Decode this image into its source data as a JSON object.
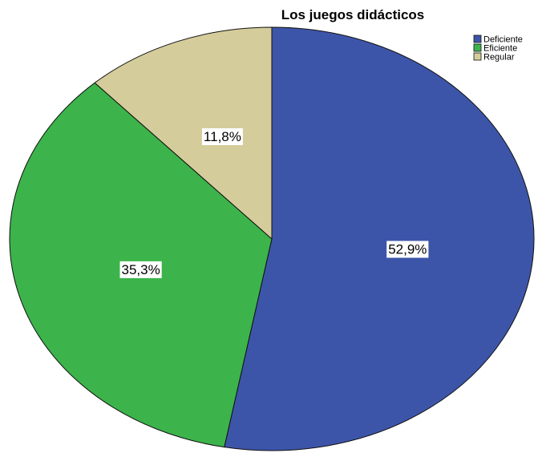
{
  "chart_data": {
    "type": "pie",
    "title": "Los juegos didácticos",
    "categories": [
      "Deficiente",
      "Eficiente",
      "Regular"
    ],
    "values": [
      52.9,
      35.3,
      11.8
    ],
    "labels": [
      "52,9%",
      "35,3%",
      "11,8%"
    ],
    "colors": [
      "#3d55a9",
      "#3cb44b",
      "#d5cc9c"
    ],
    "legend": "top-right"
  }
}
